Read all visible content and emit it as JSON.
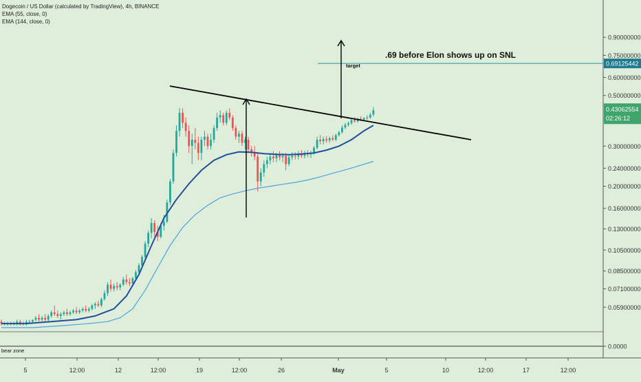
{
  "chart_data": {
    "type": "candlestick",
    "title": "Dogecoin / US Dollar (calculated by TradingView), 4h, BINANCE",
    "indicators": [
      "EMA (55, close, 0)",
      "EMA (144, close, 0)"
    ],
    "price_axis": {
      "scale": "log",
      "ticks": [
        "0.90000000",
        "0.75000000",
        "0.60000000",
        "0.50000000",
        "0.30000000",
        "0.24000000",
        "0.20000000",
        "0.16000000",
        "0.13000000",
        "0.10500000",
        "0.08500000",
        "0.07100000",
        "0.05900000",
        "0.0000"
      ],
      "current_price": "0.43062554",
      "countdown": "02:26:12",
      "target_price": "0.69125442"
    },
    "time_axis": {
      "ticks": [
        "5",
        "12:00",
        "12",
        "12:00",
        "19",
        "12:00",
        "26",
        "May",
        "5",
        "10",
        "12:00",
        "17",
        "12:00"
      ],
      "bold_tick": "May"
    },
    "annotations": {
      "headline": ".69 before Elon shows up on SNL",
      "target_label": "target",
      "sub_panel_label": "bear zone"
    },
    "colors": {
      "background": "#dfeedb",
      "up": "#26a69a",
      "down": "#ef5350",
      "ema55": "#1f4e9c",
      "ema144": "#4aa3df",
      "target_line": "#2f8fa6",
      "current_price_bg": "#3fa56b",
      "target_price_bg": "#1e7a8c"
    },
    "ema55": [
      [
        0,
        0.05
      ],
      [
        8,
        0.05
      ],
      [
        16,
        0.051
      ],
      [
        24,
        0.052
      ],
      [
        30,
        0.054
      ],
      [
        36,
        0.058
      ],
      [
        40,
        0.066
      ],
      [
        44,
        0.082
      ],
      [
        48,
        0.11
      ],
      [
        52,
        0.145
      ],
      [
        56,
        0.175
      ],
      [
        60,
        0.205
      ],
      [
        64,
        0.235
      ],
      [
        68,
        0.26
      ],
      [
        72,
        0.275
      ],
      [
        76,
        0.283
      ],
      [
        80,
        0.282
      ],
      [
        84,
        0.278
      ],
      [
        88,
        0.276
      ],
      [
        92,
        0.275
      ],
      [
        96,
        0.277
      ],
      [
        100,
        0.28
      ],
      [
        104,
        0.288
      ],
      [
        108,
        0.3
      ],
      [
        112,
        0.32
      ],
      [
        116,
        0.35
      ],
      [
        119,
        0.37
      ]
    ],
    "ema144": [
      [
        0,
        0.048
      ],
      [
        10,
        0.048
      ],
      [
        20,
        0.049
      ],
      [
        28,
        0.05
      ],
      [
        34,
        0.051
      ],
      [
        38,
        0.053
      ],
      [
        42,
        0.058
      ],
      [
        46,
        0.07
      ],
      [
        50,
        0.088
      ],
      [
        54,
        0.11
      ],
      [
        58,
        0.132
      ],
      [
        62,
        0.15
      ],
      [
        66,
        0.165
      ],
      [
        70,
        0.178
      ],
      [
        74,
        0.185
      ],
      [
        78,
        0.191
      ],
      [
        82,
        0.196
      ],
      [
        86,
        0.2
      ],
      [
        90,
        0.204
      ],
      [
        94,
        0.208
      ],
      [
        98,
        0.213
      ],
      [
        102,
        0.22
      ],
      [
        106,
        0.228
      ],
      [
        110,
        0.236
      ],
      [
        114,
        0.245
      ],
      [
        119,
        0.257
      ]
    ],
    "candles": [
      {
        "o": 0.051,
        "h": 0.052,
        "l": 0.049,
        "c": 0.05
      },
      {
        "o": 0.05,
        "h": 0.051,
        "l": 0.049,
        "c": 0.05
      },
      {
        "o": 0.05,
        "h": 0.051,
        "l": 0.049,
        "c": 0.05
      },
      {
        "o": 0.05,
        "h": 0.051,
        "l": 0.049,
        "c": 0.05
      },
      {
        "o": 0.05,
        "h": 0.051,
        "l": 0.049,
        "c": 0.05
      },
      {
        "o": 0.05,
        "h": 0.052,
        "l": 0.049,
        "c": 0.051
      },
      {
        "o": 0.051,
        "h": 0.052,
        "l": 0.049,
        "c": 0.05
      },
      {
        "o": 0.05,
        "h": 0.051,
        "l": 0.049,
        "c": 0.05
      },
      {
        "o": 0.05,
        "h": 0.052,
        "l": 0.049,
        "c": 0.051
      },
      {
        "o": 0.051,
        "h": 0.052,
        "l": 0.05,
        "c": 0.051
      },
      {
        "o": 0.051,
        "h": 0.052,
        "l": 0.05,
        "c": 0.052
      },
      {
        "o": 0.052,
        "h": 0.054,
        "l": 0.051,
        "c": 0.053
      },
      {
        "o": 0.053,
        "h": 0.055,
        "l": 0.051,
        "c": 0.052
      },
      {
        "o": 0.052,
        "h": 0.054,
        "l": 0.051,
        "c": 0.053
      },
      {
        "o": 0.053,
        "h": 0.055,
        "l": 0.051,
        "c": 0.052
      },
      {
        "o": 0.052,
        "h": 0.055,
        "l": 0.051,
        "c": 0.054
      },
      {
        "o": 0.054,
        "h": 0.057,
        "l": 0.053,
        "c": 0.056
      },
      {
        "o": 0.056,
        "h": 0.06,
        "l": 0.054,
        "c": 0.055
      },
      {
        "o": 0.055,
        "h": 0.057,
        "l": 0.053,
        "c": 0.054
      },
      {
        "o": 0.054,
        "h": 0.056,
        "l": 0.052,
        "c": 0.055
      },
      {
        "o": 0.055,
        "h": 0.057,
        "l": 0.054,
        "c": 0.056
      },
      {
        "o": 0.056,
        "h": 0.058,
        "l": 0.054,
        "c": 0.055
      },
      {
        "o": 0.055,
        "h": 0.057,
        "l": 0.054,
        "c": 0.056
      },
      {
        "o": 0.056,
        "h": 0.058,
        "l": 0.055,
        "c": 0.057
      },
      {
        "o": 0.057,
        "h": 0.059,
        "l": 0.055,
        "c": 0.056
      },
      {
        "o": 0.056,
        "h": 0.058,
        "l": 0.055,
        "c": 0.057
      },
      {
        "o": 0.057,
        "h": 0.059,
        "l": 0.056,
        "c": 0.058
      },
      {
        "o": 0.058,
        "h": 0.06,
        "l": 0.056,
        "c": 0.057
      },
      {
        "o": 0.057,
        "h": 0.059,
        "l": 0.056,
        "c": 0.058
      },
      {
        "o": 0.058,
        "h": 0.061,
        "l": 0.057,
        "c": 0.06
      },
      {
        "o": 0.06,
        "h": 0.062,
        "l": 0.058,
        "c": 0.061
      },
      {
        "o": 0.061,
        "h": 0.063,
        "l": 0.059,
        "c": 0.06
      },
      {
        "o": 0.06,
        "h": 0.065,
        "l": 0.059,
        "c": 0.064
      },
      {
        "o": 0.064,
        "h": 0.07,
        "l": 0.063,
        "c": 0.068
      },
      {
        "o": 0.068,
        "h": 0.076,
        "l": 0.066,
        "c": 0.074
      },
      {
        "o": 0.074,
        "h": 0.078,
        "l": 0.069,
        "c": 0.071
      },
      {
        "o": 0.071,
        "h": 0.075,
        "l": 0.069,
        "c": 0.073
      },
      {
        "o": 0.073,
        "h": 0.076,
        "l": 0.07,
        "c": 0.072
      },
      {
        "o": 0.072,
        "h": 0.075,
        "l": 0.07,
        "c": 0.074
      },
      {
        "o": 0.074,
        "h": 0.08,
        "l": 0.073,
        "c": 0.078
      },
      {
        "o": 0.078,
        "h": 0.082,
        "l": 0.074,
        "c": 0.076
      },
      {
        "o": 0.076,
        "h": 0.079,
        "l": 0.073,
        "c": 0.075
      },
      {
        "o": 0.075,
        "h": 0.08,
        "l": 0.074,
        "c": 0.079
      },
      {
        "o": 0.079,
        "h": 0.086,
        "l": 0.077,
        "c": 0.084
      },
      {
        "o": 0.084,
        "h": 0.092,
        "l": 0.082,
        "c": 0.09
      },
      {
        "o": 0.09,
        "h": 0.1,
        "l": 0.088,
        "c": 0.098
      },
      {
        "o": 0.098,
        "h": 0.115,
        "l": 0.096,
        "c": 0.112
      },
      {
        "o": 0.112,
        "h": 0.128,
        "l": 0.108,
        "c": 0.125
      },
      {
        "o": 0.125,
        "h": 0.145,
        "l": 0.118,
        "c": 0.138
      },
      {
        "o": 0.138,
        "h": 0.142,
        "l": 0.12,
        "c": 0.126
      },
      {
        "o": 0.126,
        "h": 0.134,
        "l": 0.115,
        "c": 0.12
      },
      {
        "o": 0.12,
        "h": 0.138,
        "l": 0.118,
        "c": 0.134
      },
      {
        "o": 0.134,
        "h": 0.15,
        "l": 0.128,
        "c": 0.14
      },
      {
        "o": 0.14,
        "h": 0.175,
        "l": 0.138,
        "c": 0.17
      },
      {
        "o": 0.17,
        "h": 0.215,
        "l": 0.165,
        "c": 0.21
      },
      {
        "o": 0.21,
        "h": 0.29,
        "l": 0.205,
        "c": 0.28
      },
      {
        "o": 0.28,
        "h": 0.37,
        "l": 0.27,
        "c": 0.35
      },
      {
        "o": 0.35,
        "h": 0.44,
        "l": 0.33,
        "c": 0.42
      },
      {
        "o": 0.42,
        "h": 0.44,
        "l": 0.36,
        "c": 0.38
      },
      {
        "o": 0.38,
        "h": 0.4,
        "l": 0.33,
        "c": 0.35
      },
      {
        "o": 0.35,
        "h": 0.37,
        "l": 0.28,
        "c": 0.3
      },
      {
        "o": 0.3,
        "h": 0.34,
        "l": 0.25,
        "c": 0.32
      },
      {
        "o": 0.32,
        "h": 0.36,
        "l": 0.29,
        "c": 0.31
      },
      {
        "o": 0.31,
        "h": 0.33,
        "l": 0.26,
        "c": 0.28
      },
      {
        "o": 0.28,
        "h": 0.33,
        "l": 0.26,
        "c": 0.32
      },
      {
        "o": 0.32,
        "h": 0.35,
        "l": 0.3,
        "c": 0.33
      },
      {
        "o": 0.33,
        "h": 0.34,
        "l": 0.29,
        "c": 0.3
      },
      {
        "o": 0.3,
        "h": 0.34,
        "l": 0.29,
        "c": 0.32
      },
      {
        "o": 0.32,
        "h": 0.37,
        "l": 0.31,
        "c": 0.36
      },
      {
        "o": 0.36,
        "h": 0.42,
        "l": 0.35,
        "c": 0.4
      },
      {
        "o": 0.4,
        "h": 0.43,
        "l": 0.38,
        "c": 0.41
      },
      {
        "o": 0.41,
        "h": 0.42,
        "l": 0.37,
        "c": 0.38
      },
      {
        "o": 0.38,
        "h": 0.43,
        "l": 0.37,
        "c": 0.42
      },
      {
        "o": 0.42,
        "h": 0.44,
        "l": 0.39,
        "c": 0.4
      },
      {
        "o": 0.4,
        "h": 0.41,
        "l": 0.35,
        "c": 0.36
      },
      {
        "o": 0.36,
        "h": 0.37,
        "l": 0.32,
        "c": 0.33
      },
      {
        "o": 0.33,
        "h": 0.35,
        "l": 0.31,
        "c": 0.34
      },
      {
        "o": 0.34,
        "h": 0.35,
        "l": 0.3,
        "c": 0.31
      },
      {
        "o": 0.31,
        "h": 0.33,
        "l": 0.29,
        "c": 0.32
      },
      {
        "o": 0.32,
        "h": 0.33,
        "l": 0.28,
        "c": 0.29
      },
      {
        "o": 0.29,
        "h": 0.3,
        "l": 0.27,
        "c": 0.28
      },
      {
        "o": 0.28,
        "h": 0.3,
        "l": 0.26,
        "c": 0.27
      },
      {
        "o": 0.27,
        "h": 0.28,
        "l": 0.19,
        "c": 0.21
      },
      {
        "o": 0.21,
        "h": 0.24,
        "l": 0.2,
        "c": 0.23
      },
      {
        "o": 0.23,
        "h": 0.26,
        "l": 0.22,
        "c": 0.25
      },
      {
        "o": 0.25,
        "h": 0.27,
        "l": 0.24,
        "c": 0.26
      },
      {
        "o": 0.26,
        "h": 0.28,
        "l": 0.25,
        "c": 0.27
      },
      {
        "o": 0.27,
        "h": 0.285,
        "l": 0.255,
        "c": 0.265
      },
      {
        "o": 0.265,
        "h": 0.28,
        "l": 0.255,
        "c": 0.275
      },
      {
        "o": 0.275,
        "h": 0.285,
        "l": 0.26,
        "c": 0.268
      },
      {
        "o": 0.268,
        "h": 0.28,
        "l": 0.255,
        "c": 0.272
      },
      {
        "o": 0.272,
        "h": 0.28,
        "l": 0.235,
        "c": 0.25
      },
      {
        "o": 0.25,
        "h": 0.275,
        "l": 0.245,
        "c": 0.268
      },
      {
        "o": 0.268,
        "h": 0.282,
        "l": 0.26,
        "c": 0.272
      },
      {
        "o": 0.272,
        "h": 0.282,
        "l": 0.262,
        "c": 0.27
      },
      {
        "o": 0.27,
        "h": 0.285,
        "l": 0.262,
        "c": 0.278
      },
      {
        "o": 0.278,
        "h": 0.288,
        "l": 0.266,
        "c": 0.272
      },
      {
        "o": 0.272,
        "h": 0.286,
        "l": 0.265,
        "c": 0.28
      },
      {
        "o": 0.28,
        "h": 0.288,
        "l": 0.268,
        "c": 0.276
      },
      {
        "o": 0.276,
        "h": 0.286,
        "l": 0.266,
        "c": 0.28
      },
      {
        "o": 0.28,
        "h": 0.3,
        "l": 0.275,
        "c": 0.295
      },
      {
        "o": 0.295,
        "h": 0.33,
        "l": 0.29,
        "c": 0.32
      },
      {
        "o": 0.32,
        "h": 0.335,
        "l": 0.305,
        "c": 0.315
      },
      {
        "o": 0.315,
        "h": 0.33,
        "l": 0.305,
        "c": 0.322
      },
      {
        "o": 0.322,
        "h": 0.332,
        "l": 0.31,
        "c": 0.318
      },
      {
        "o": 0.318,
        "h": 0.33,
        "l": 0.31,
        "c": 0.325
      },
      {
        "o": 0.325,
        "h": 0.335,
        "l": 0.315,
        "c": 0.32
      },
      {
        "o": 0.32,
        "h": 0.34,
        "l": 0.315,
        "c": 0.335
      },
      {
        "o": 0.335,
        "h": 0.35,
        "l": 0.33,
        "c": 0.345
      },
      {
        "o": 0.345,
        "h": 0.37,
        "l": 0.34,
        "c": 0.362
      },
      {
        "o": 0.362,
        "h": 0.38,
        "l": 0.355,
        "c": 0.372
      },
      {
        "o": 0.372,
        "h": 0.385,
        "l": 0.365,
        "c": 0.378
      },
      {
        "o": 0.378,
        "h": 0.395,
        "l": 0.372,
        "c": 0.39
      },
      {
        "o": 0.39,
        "h": 0.402,
        "l": 0.38,
        "c": 0.385
      },
      {
        "o": 0.385,
        "h": 0.4,
        "l": 0.38,
        "c": 0.395
      },
      {
        "o": 0.395,
        "h": 0.405,
        "l": 0.386,
        "c": 0.392
      },
      {
        "o": 0.392,
        "h": 0.402,
        "l": 0.385,
        "c": 0.398
      },
      {
        "o": 0.398,
        "h": 0.41,
        "l": 0.39,
        "c": 0.4
      },
      {
        "o": 0.4,
        "h": 0.42,
        "l": 0.395,
        "c": 0.412
      },
      {
        "o": 0.412,
        "h": 0.445,
        "l": 0.405,
        "c": 0.431
      }
    ]
  }
}
